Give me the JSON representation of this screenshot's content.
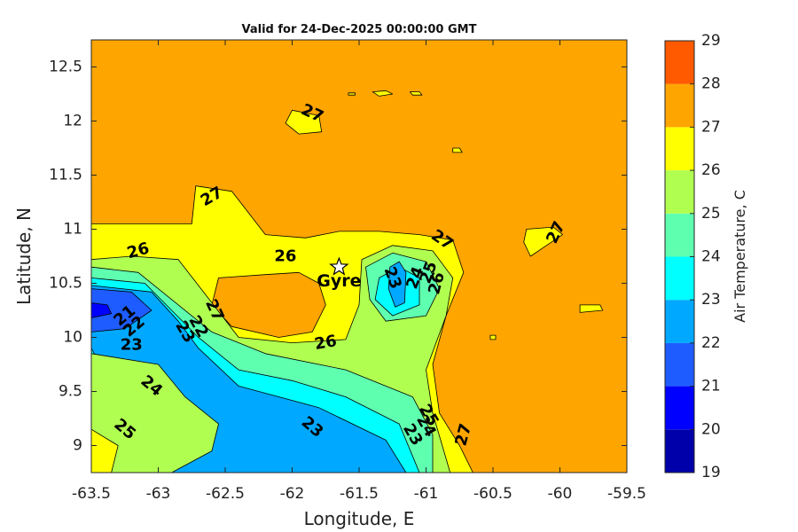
{
  "chart_data": {
    "type": "contour",
    "title": "Valid for 24-Dec-2025 00:00:00 GMT",
    "xlabel": "Longitude, E",
    "ylabel": "Latitude, N",
    "xlim": [
      -63.5,
      -59.5
    ],
    "ylim": [
      8.75,
      12.75
    ],
    "xticks": [
      -63.5,
      -63,
      -62.5,
      -62,
      -61.5,
      -61,
      -60.5,
      -60,
      -59.5
    ],
    "xtick_labels": [
      "-63.5",
      "-63",
      "-62.5",
      "-62",
      "-61.5",
      "-61",
      "-60.5",
      "-60",
      "-59.5"
    ],
    "yticks": [
      9,
      9.5,
      10,
      10.5,
      11,
      11.5,
      12,
      12.5
    ],
    "ytick_labels": [
      "9",
      "9.5",
      "10",
      "10.5",
      "11",
      "11.5",
      "12",
      "12.5"
    ],
    "colorbar": {
      "title": "Air Temperature, C",
      "ticks": [
        19,
        20,
        21,
        22,
        23,
        24,
        25,
        26,
        27,
        28,
        29
      ],
      "tick_labels": [
        "19",
        "20",
        "21",
        "22",
        "23",
        "24",
        "25",
        "26",
        "27",
        "28",
        "29"
      ],
      "level_colors": [
        "#0000aa",
        "#0000ff",
        "#1e5cff",
        "#00a8ff",
        "#00ffff",
        "#5fffb0",
        "#b0ff50",
        "#ffff00",
        "#ffa500",
        "#ff5a00",
        "#ff0000"
      ]
    },
    "background_level_color": "#ffa500",
    "regions": [
      {
        "level": 26,
        "polygon": [
          [
            -63.5,
            11.05
          ],
          [
            -62.75,
            11.05
          ],
          [
            -62.72,
            11.4
          ],
          [
            -62.45,
            11.35
          ],
          [
            -62.2,
            10.95
          ],
          [
            -61.9,
            10.92
          ],
          [
            -61.65,
            10.98
          ],
          [
            -61.35,
            10.98
          ],
          [
            -61.05,
            10.95
          ],
          [
            -60.8,
            10.9
          ],
          [
            -60.72,
            10.6
          ],
          [
            -60.85,
            10.2
          ],
          [
            -60.95,
            9.75
          ],
          [
            -60.9,
            9.3
          ],
          [
            -60.75,
            9.0
          ],
          [
            -60.65,
            8.75
          ],
          [
            -63.5,
            8.75
          ]
        ]
      },
      {
        "level": 27,
        "polygon": [
          [
            -62.55,
            10.55
          ],
          [
            -62.2,
            10.58
          ],
          [
            -61.95,
            10.6
          ],
          [
            -61.8,
            10.5
          ],
          [
            -61.75,
            10.3
          ],
          [
            -61.85,
            10.05
          ],
          [
            -62.1,
            10.0
          ],
          [
            -62.45,
            10.1
          ],
          [
            -62.6,
            10.3
          ]
        ]
      },
      {
        "level": 25,
        "polygon": [
          [
            -63.5,
            10.72
          ],
          [
            -63.2,
            10.75
          ],
          [
            -62.85,
            10.72
          ],
          [
            -62.65,
            10.4
          ],
          [
            -62.4,
            10.0
          ],
          [
            -62.0,
            9.95
          ],
          [
            -61.6,
            9.98
          ],
          [
            -61.5,
            10.3
          ],
          [
            -61.48,
            10.72
          ],
          [
            -61.25,
            10.85
          ],
          [
            -60.95,
            10.8
          ],
          [
            -60.8,
            10.55
          ],
          [
            -60.85,
            10.2
          ],
          [
            -61.0,
            9.7
          ],
          [
            -60.95,
            9.3
          ],
          [
            -60.82,
            8.75
          ],
          [
            -63.5,
            8.75
          ]
        ]
      },
      {
        "level": 24,
        "polygon": [
          [
            -63.5,
            10.65
          ],
          [
            -63.15,
            10.6
          ],
          [
            -62.95,
            10.4
          ],
          [
            -62.6,
            10.05
          ],
          [
            -62.2,
            9.85
          ],
          [
            -61.6,
            9.7
          ],
          [
            -61.1,
            9.45
          ],
          [
            -60.95,
            9.1
          ],
          [
            -60.95,
            8.75
          ],
          [
            -63.5,
            8.75
          ]
        ]
      },
      {
        "level": 24,
        "polygon": [
          [
            -61.45,
            10.65
          ],
          [
            -61.25,
            10.78
          ],
          [
            -61.0,
            10.7
          ],
          [
            -60.9,
            10.45
          ],
          [
            -61.0,
            10.2
          ],
          [
            -61.3,
            10.15
          ],
          [
            -61.42,
            10.35
          ]
        ]
      },
      {
        "level": 23,
        "polygon": [
          [
            -63.5,
            10.55
          ],
          [
            -63.1,
            10.5
          ],
          [
            -62.9,
            10.25
          ],
          [
            -62.7,
            10.0
          ],
          [
            -62.4,
            9.7
          ],
          [
            -62.0,
            9.6
          ],
          [
            -61.6,
            9.45
          ],
          [
            -61.2,
            9.2
          ],
          [
            -61.05,
            8.75
          ],
          [
            -63.5,
            8.75
          ]
        ]
      },
      {
        "level": 22,
        "polygon": [
          [
            -63.5,
            10.48
          ],
          [
            -63.05,
            10.42
          ],
          [
            -62.85,
            10.15
          ],
          [
            -62.7,
            9.9
          ],
          [
            -62.4,
            9.55
          ],
          [
            -61.8,
            9.35
          ],
          [
            -61.3,
            9.05
          ],
          [
            -61.15,
            8.75
          ],
          [
            -63.0,
            8.75
          ],
          [
            -63.5,
            9.9
          ]
        ]
      },
      {
        "level": 23,
        "polygon": [
          [
            -61.35,
            10.55
          ],
          [
            -61.2,
            10.65
          ],
          [
            -61.05,
            10.55
          ],
          [
            -61.05,
            10.3
          ],
          [
            -61.25,
            10.2
          ],
          [
            -61.38,
            10.35
          ]
        ]
      },
      {
        "level": 22,
        "polygon": [
          [
            -61.27,
            10.65
          ],
          [
            -61.2,
            10.7
          ],
          [
            -61.15,
            10.6
          ],
          [
            -61.16,
            10.32
          ],
          [
            -61.23,
            10.28
          ],
          [
            -61.28,
            10.45
          ]
        ]
      },
      {
        "level": 21,
        "polygon": [
          [
            -63.5,
            10.45
          ],
          [
            -63.2,
            10.42
          ],
          [
            -63.05,
            10.25
          ],
          [
            -63.25,
            10.08
          ],
          [
            -63.5,
            10.05
          ]
        ]
      },
      {
        "level": 20,
        "polygon": [
          [
            -63.5,
            10.32
          ],
          [
            -63.38,
            10.3
          ],
          [
            -63.35,
            10.22
          ],
          [
            -63.5,
            10.18
          ]
        ]
      },
      {
        "level": 25,
        "polygon": [
          [
            -63.5,
            9.85
          ],
          [
            -63.0,
            9.75
          ],
          [
            -62.8,
            9.45
          ],
          [
            -62.55,
            9.2
          ],
          [
            -62.6,
            8.95
          ],
          [
            -62.9,
            8.75
          ],
          [
            -63.5,
            8.75
          ]
        ]
      },
      {
        "level": 26,
        "polygon": [
          [
            -63.5,
            9.15
          ],
          [
            -63.3,
            9.0
          ],
          [
            -63.35,
            8.75
          ],
          [
            -63.5,
            8.75
          ]
        ]
      },
      {
        "level": 26,
        "polygon": [
          [
            -62.0,
            12.1
          ],
          [
            -61.8,
            12.05
          ],
          [
            -61.78,
            11.9
          ],
          [
            -61.95,
            11.88
          ],
          [
            -62.05,
            11.98
          ]
        ]
      },
      {
        "level": 26,
        "polygon": [
          [
            -61.4,
            12.27
          ],
          [
            -61.3,
            12.28
          ],
          [
            -61.25,
            12.25
          ],
          [
            -61.35,
            12.23
          ]
        ]
      },
      {
        "level": 26,
        "polygon": [
          [
            -61.12,
            12.27
          ],
          [
            -61.05,
            12.27
          ],
          [
            -61.03,
            12.24
          ],
          [
            -61.1,
            12.24
          ]
        ]
      },
      {
        "level": 26,
        "polygon": [
          [
            -61.58,
            12.26
          ],
          [
            -61.53,
            12.26
          ],
          [
            -61.53,
            12.24
          ],
          [
            -61.58,
            12.24
          ]
        ]
      },
      {
        "level": 26,
        "polygon": [
          [
            -60.8,
            11.75
          ],
          [
            -60.75,
            11.75
          ],
          [
            -60.73,
            11.71
          ],
          [
            -60.8,
            11.71
          ]
        ]
      },
      {
        "level": 26,
        "polygon": [
          [
            -60.25,
            11.0
          ],
          [
            -60.05,
            11.02
          ],
          [
            -59.98,
            10.95
          ],
          [
            -60.1,
            10.85
          ],
          [
            -60.22,
            10.75
          ],
          [
            -60.27,
            10.88
          ]
        ]
      },
      {
        "level": 26,
        "polygon": [
          [
            -59.85,
            10.3
          ],
          [
            -59.7,
            10.3
          ],
          [
            -59.68,
            10.25
          ],
          [
            -59.85,
            10.23
          ]
        ]
      },
      {
        "level": 26,
        "polygon": [
          [
            -60.52,
            10.02
          ],
          [
            -60.48,
            10.02
          ],
          [
            -60.48,
            9.98
          ],
          [
            -60.52,
            9.98
          ]
        ]
      }
    ],
    "contour_labels": [
      {
        "value": 27,
        "text": "27",
        "lon": -61.85,
        "lat": 12.07,
        "angle": 25
      },
      {
        "value": 27,
        "text": "27",
        "lon": -62.6,
        "lat": 11.3,
        "angle": -30
      },
      {
        "value": 27,
        "text": "27",
        "lon": -60.88,
        "lat": 10.9,
        "angle": 35
      },
      {
        "value": 27,
        "text": "27",
        "lon": -60.03,
        "lat": 10.97,
        "angle": -65
      },
      {
        "value": 26,
        "text": "26",
        "lon": -63.15,
        "lat": 10.8,
        "angle": -15
      },
      {
        "value": 26,
        "text": "26",
        "lon": -62.05,
        "lat": 10.75,
        "angle": 0
      },
      {
        "value": 26,
        "text": "26",
        "lon": -61.75,
        "lat": 9.95,
        "angle": -10
      },
      {
        "value": 27,
        "text": "27",
        "lon": -62.58,
        "lat": 10.25,
        "angle": 65
      },
      {
        "value": 23,
        "text": "23",
        "lon": -62.8,
        "lat": 10.05,
        "angle": 60
      },
      {
        "value": 22,
        "text": "22",
        "lon": -62.7,
        "lat": 10.1,
        "angle": 60
      },
      {
        "value": 21,
        "text": "21",
        "lon": -63.25,
        "lat": 10.2,
        "angle": -40
      },
      {
        "value": 22,
        "text": "22",
        "lon": -63.18,
        "lat": 10.1,
        "angle": -40
      },
      {
        "value": 23,
        "text": "23",
        "lon": -63.2,
        "lat": 9.93,
        "angle": 0
      },
      {
        "value": 24,
        "text": "24",
        "lon": -63.05,
        "lat": 9.55,
        "angle": 40
      },
      {
        "value": 25,
        "text": "25",
        "lon": -63.25,
        "lat": 9.15,
        "angle": 40
      },
      {
        "value": 23,
        "text": "23",
        "lon": -61.85,
        "lat": 9.17,
        "angle": 40
      },
      {
        "value": 23,
        "text": "23",
        "lon": -61.25,
        "lat": 10.55,
        "angle": 70
      },
      {
        "value": 24,
        "text": "24",
        "lon": -61.08,
        "lat": 10.55,
        "angle": -70
      },
      {
        "value": 25,
        "text": "25",
        "lon": -60.98,
        "lat": 10.6,
        "angle": -70
      },
      {
        "value": 26,
        "text": "26",
        "lon": -60.92,
        "lat": 10.5,
        "angle": -75
      },
      {
        "value": 23,
        "text": "23",
        "lon": -61.1,
        "lat": 9.1,
        "angle": 60
      },
      {
        "value": 24,
        "text": "24",
        "lon": -61.0,
        "lat": 9.18,
        "angle": 60
      },
      {
        "value": 25,
        "text": "25",
        "lon": -60.98,
        "lat": 9.28,
        "angle": 60
      },
      {
        "value": 27,
        "text": "27",
        "lon": -60.72,
        "lat": 9.1,
        "angle": -75
      }
    ],
    "markers": [
      {
        "name": "Gyre",
        "lon": -61.65,
        "lat": 10.65,
        "symbol": "star"
      }
    ]
  }
}
